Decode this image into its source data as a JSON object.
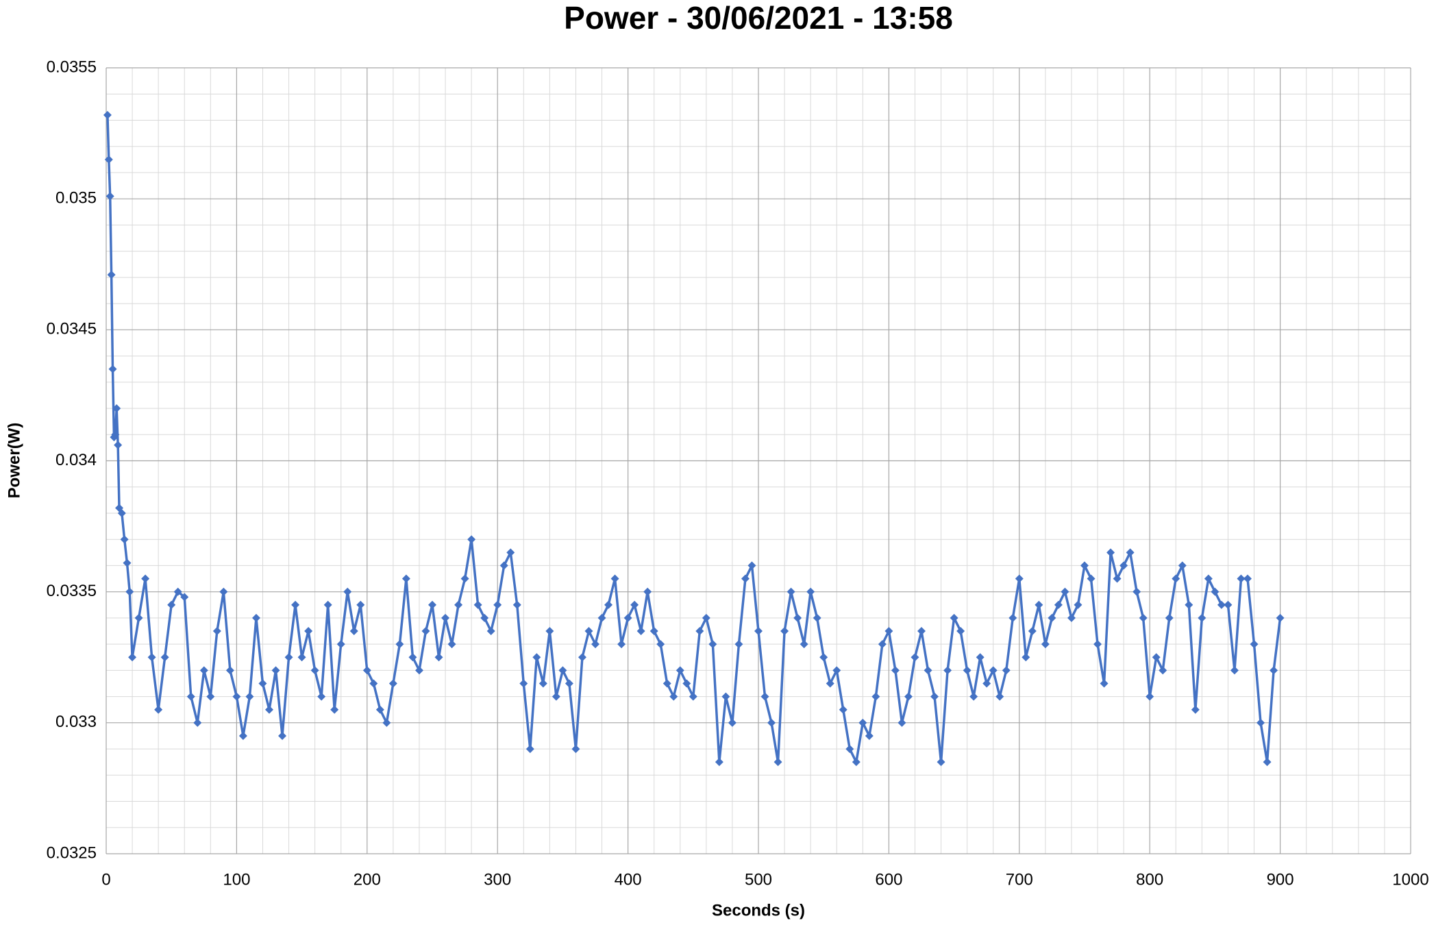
{
  "chart_data": {
    "type": "line",
    "title": "Power - 30/06/2021 - 13:58",
    "x_label": "Seconds (s)",
    "y_label": "Power(W)",
    "color": "#4472c4",
    "grid": true,
    "minor_divisions": 5,
    "marker": "diamond",
    "xlim": [
      0,
      1000
    ],
    "xticks": [
      0,
      100,
      200,
      300,
      400,
      500,
      600,
      700,
      800,
      900,
      1000
    ],
    "ylim": [
      0.0325,
      0.0355
    ],
    "yticks": [
      0.0325,
      0.033,
      0.0335,
      0.034,
      0.0345,
      0.035,
      0.0355
    ],
    "x": [
      1,
      2,
      3,
      4,
      5,
      6,
      7,
      8,
      9,
      10,
      12,
      14,
      16,
      18,
      20,
      25,
      30,
      35,
      40,
      45,
      50,
      55,
      60,
      65,
      70,
      75,
      80,
      85,
      90,
      95,
      100,
      105,
      110,
      115,
      120,
      125,
      130,
      135,
      140,
      145,
      150,
      155,
      160,
      165,
      170,
      175,
      180,
      185,
      190,
      195,
      200,
      205,
      210,
      215,
      220,
      225,
      230,
      235,
      240,
      245,
      250,
      255,
      260,
      265,
      270,
      275,
      280,
      285,
      290,
      295,
      300,
      305,
      310,
      315,
      320,
      325,
      330,
      335,
      340,
      345,
      350,
      355,
      360,
      365,
      370,
      375,
      380,
      385,
      390,
      395,
      400,
      405,
      410,
      415,
      420,
      425,
      430,
      435,
      440,
      445,
      450,
      455,
      460,
      465,
      470,
      475,
      480,
      485,
      490,
      495,
      500,
      505,
      510,
      515,
      520,
      525,
      530,
      535,
      540,
      545,
      550,
      555,
      560,
      565,
      570,
      575,
      580,
      585,
      590,
      595,
      600,
      605,
      610,
      615,
      620,
      625,
      630,
      635,
      640,
      645,
      650,
      655,
      660,
      665,
      670,
      675,
      680,
      685,
      690,
      695,
      700,
      705,
      710,
      715,
      720,
      725,
      730,
      735,
      740,
      745,
      750,
      755,
      760,
      765,
      770,
      775,
      780,
      785,
      790,
      795,
      800,
      805,
      810,
      815,
      820,
      825,
      830,
      835,
      840,
      845,
      850,
      855,
      860,
      865,
      870,
      875,
      880,
      885,
      890,
      895,
      900
    ],
    "values": [
      0.03532,
      0.03515,
      0.03501,
      0.03471,
      0.03435,
      0.03409,
      0.0341,
      0.0342,
      0.03406,
      0.03382,
      0.0338,
      0.0337,
      0.03361,
      0.0335,
      0.03325,
      0.0334,
      0.03355,
      0.03325,
      0.03305,
      0.03325,
      0.03345,
      0.0335,
      0.03348,
      0.0331,
      0.033,
      0.0332,
      0.0331,
      0.03335,
      0.0335,
      0.0332,
      0.0331,
      0.03295,
      0.0331,
      0.0334,
      0.03315,
      0.03305,
      0.0332,
      0.03295,
      0.03325,
      0.03345,
      0.03325,
      0.03335,
      0.0332,
      0.0331,
      0.03345,
      0.03305,
      0.0333,
      0.0335,
      0.03335,
      0.03345,
      0.0332,
      0.03315,
      0.03305,
      0.033,
      0.03315,
      0.0333,
      0.03355,
      0.03325,
      0.0332,
      0.03335,
      0.03345,
      0.03325,
      0.0334,
      0.0333,
      0.03345,
      0.03355,
      0.0337,
      0.03345,
      0.0334,
      0.03335,
      0.03345,
      0.0336,
      0.03365,
      0.03345,
      0.03315,
      0.0329,
      0.03325,
      0.03315,
      0.03335,
      0.0331,
      0.0332,
      0.03315,
      0.0329,
      0.03325,
      0.03335,
      0.0333,
      0.0334,
      0.03345,
      0.03355,
      0.0333,
      0.0334,
      0.03345,
      0.03335,
      0.0335,
      0.03335,
      0.0333,
      0.03315,
      0.0331,
      0.0332,
      0.03315,
      0.0331,
      0.03335,
      0.0334,
      0.0333,
      0.03285,
      0.0331,
      0.033,
      0.0333,
      0.03355,
      0.0336,
      0.03335,
      0.0331,
      0.033,
      0.03285,
      0.03335,
      0.0335,
      0.0334,
      0.0333,
      0.0335,
      0.0334,
      0.03325,
      0.03315,
      0.0332,
      0.03305,
      0.0329,
      0.03285,
      0.033,
      0.03295,
      0.0331,
      0.0333,
      0.03335,
      0.0332,
      0.033,
      0.0331,
      0.03325,
      0.03335,
      0.0332,
      0.0331,
      0.03285,
      0.0332,
      0.0334,
      0.03335,
      0.0332,
      0.0331,
      0.03325,
      0.03315,
      0.0332,
      0.0331,
      0.0332,
      0.0334,
      0.03355,
      0.03325,
      0.03335,
      0.03345,
      0.0333,
      0.0334,
      0.03345,
      0.0335,
      0.0334,
      0.03345,
      0.0336,
      0.03355,
      0.0333,
      0.03315,
      0.03365,
      0.03355,
      0.0336,
      0.03365,
      0.0335,
      0.0334,
      0.0331,
      0.03325,
      0.0332,
      0.0334,
      0.03355,
      0.0336,
      0.03345,
      0.03305,
      0.0334,
      0.03355,
      0.0335,
      0.03345,
      0.03345,
      0.0332,
      0.03355,
      0.03355,
      0.0333,
      0.033,
      0.03285,
      0.0332,
      0.0334
    ]
  }
}
